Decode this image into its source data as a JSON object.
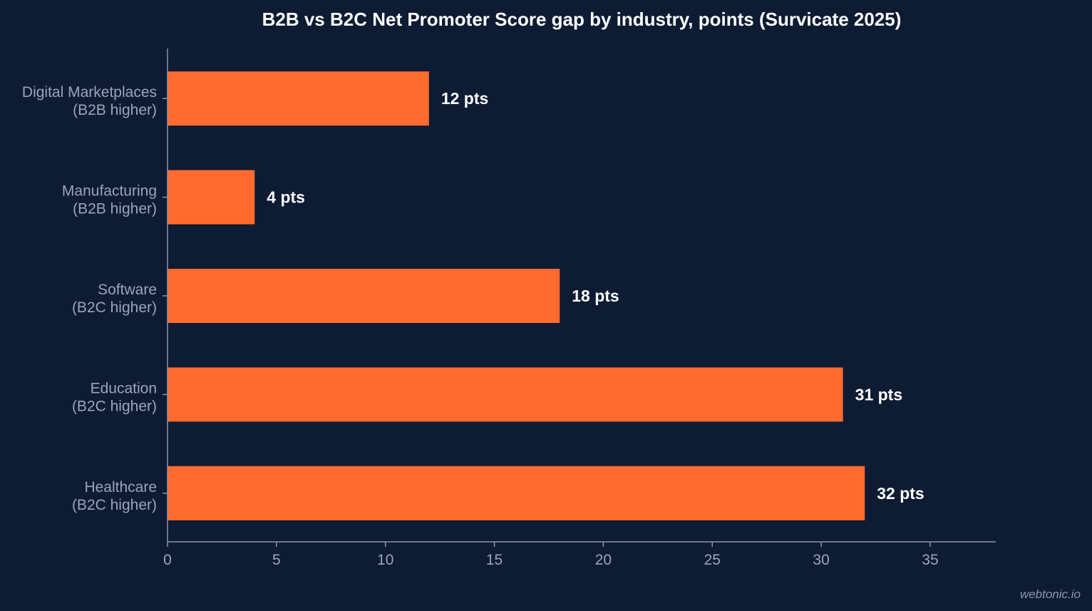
{
  "chart_data": {
    "type": "bar",
    "orientation": "horizontal",
    "title": "B2B vs B2C Net Promoter Score gap by industry, points (Survicate 2025)",
    "xlabel": "",
    "ylabel": "",
    "categories": [
      [
        "Digital Marketplaces",
        "(B2B higher)"
      ],
      [
        "Manufacturing",
        "(B2B higher)"
      ],
      [
        "Software",
        "(B2C higher)"
      ],
      [
        "Education",
        "(B2C higher)"
      ],
      [
        "Healthcare",
        "(B2C higher)"
      ]
    ],
    "values": [
      12,
      4,
      18,
      31,
      32
    ],
    "data_labels": [
      "12 pts",
      "4 pts",
      "18 pts",
      "31 pts",
      "32 pts"
    ],
    "xlim": [
      0,
      38
    ],
    "xticks": [
      0,
      5,
      10,
      15,
      20,
      25,
      30,
      35
    ],
    "grid": false,
    "bar_color": "#ff6b2e"
  },
  "watermark": "webtonic.io",
  "colors": {
    "background": "#0d1b33",
    "bar": "#ff6b2e",
    "axis": "#8d98ab",
    "text_light": "#ffffff",
    "text_muted": "#9aa6b8"
  }
}
